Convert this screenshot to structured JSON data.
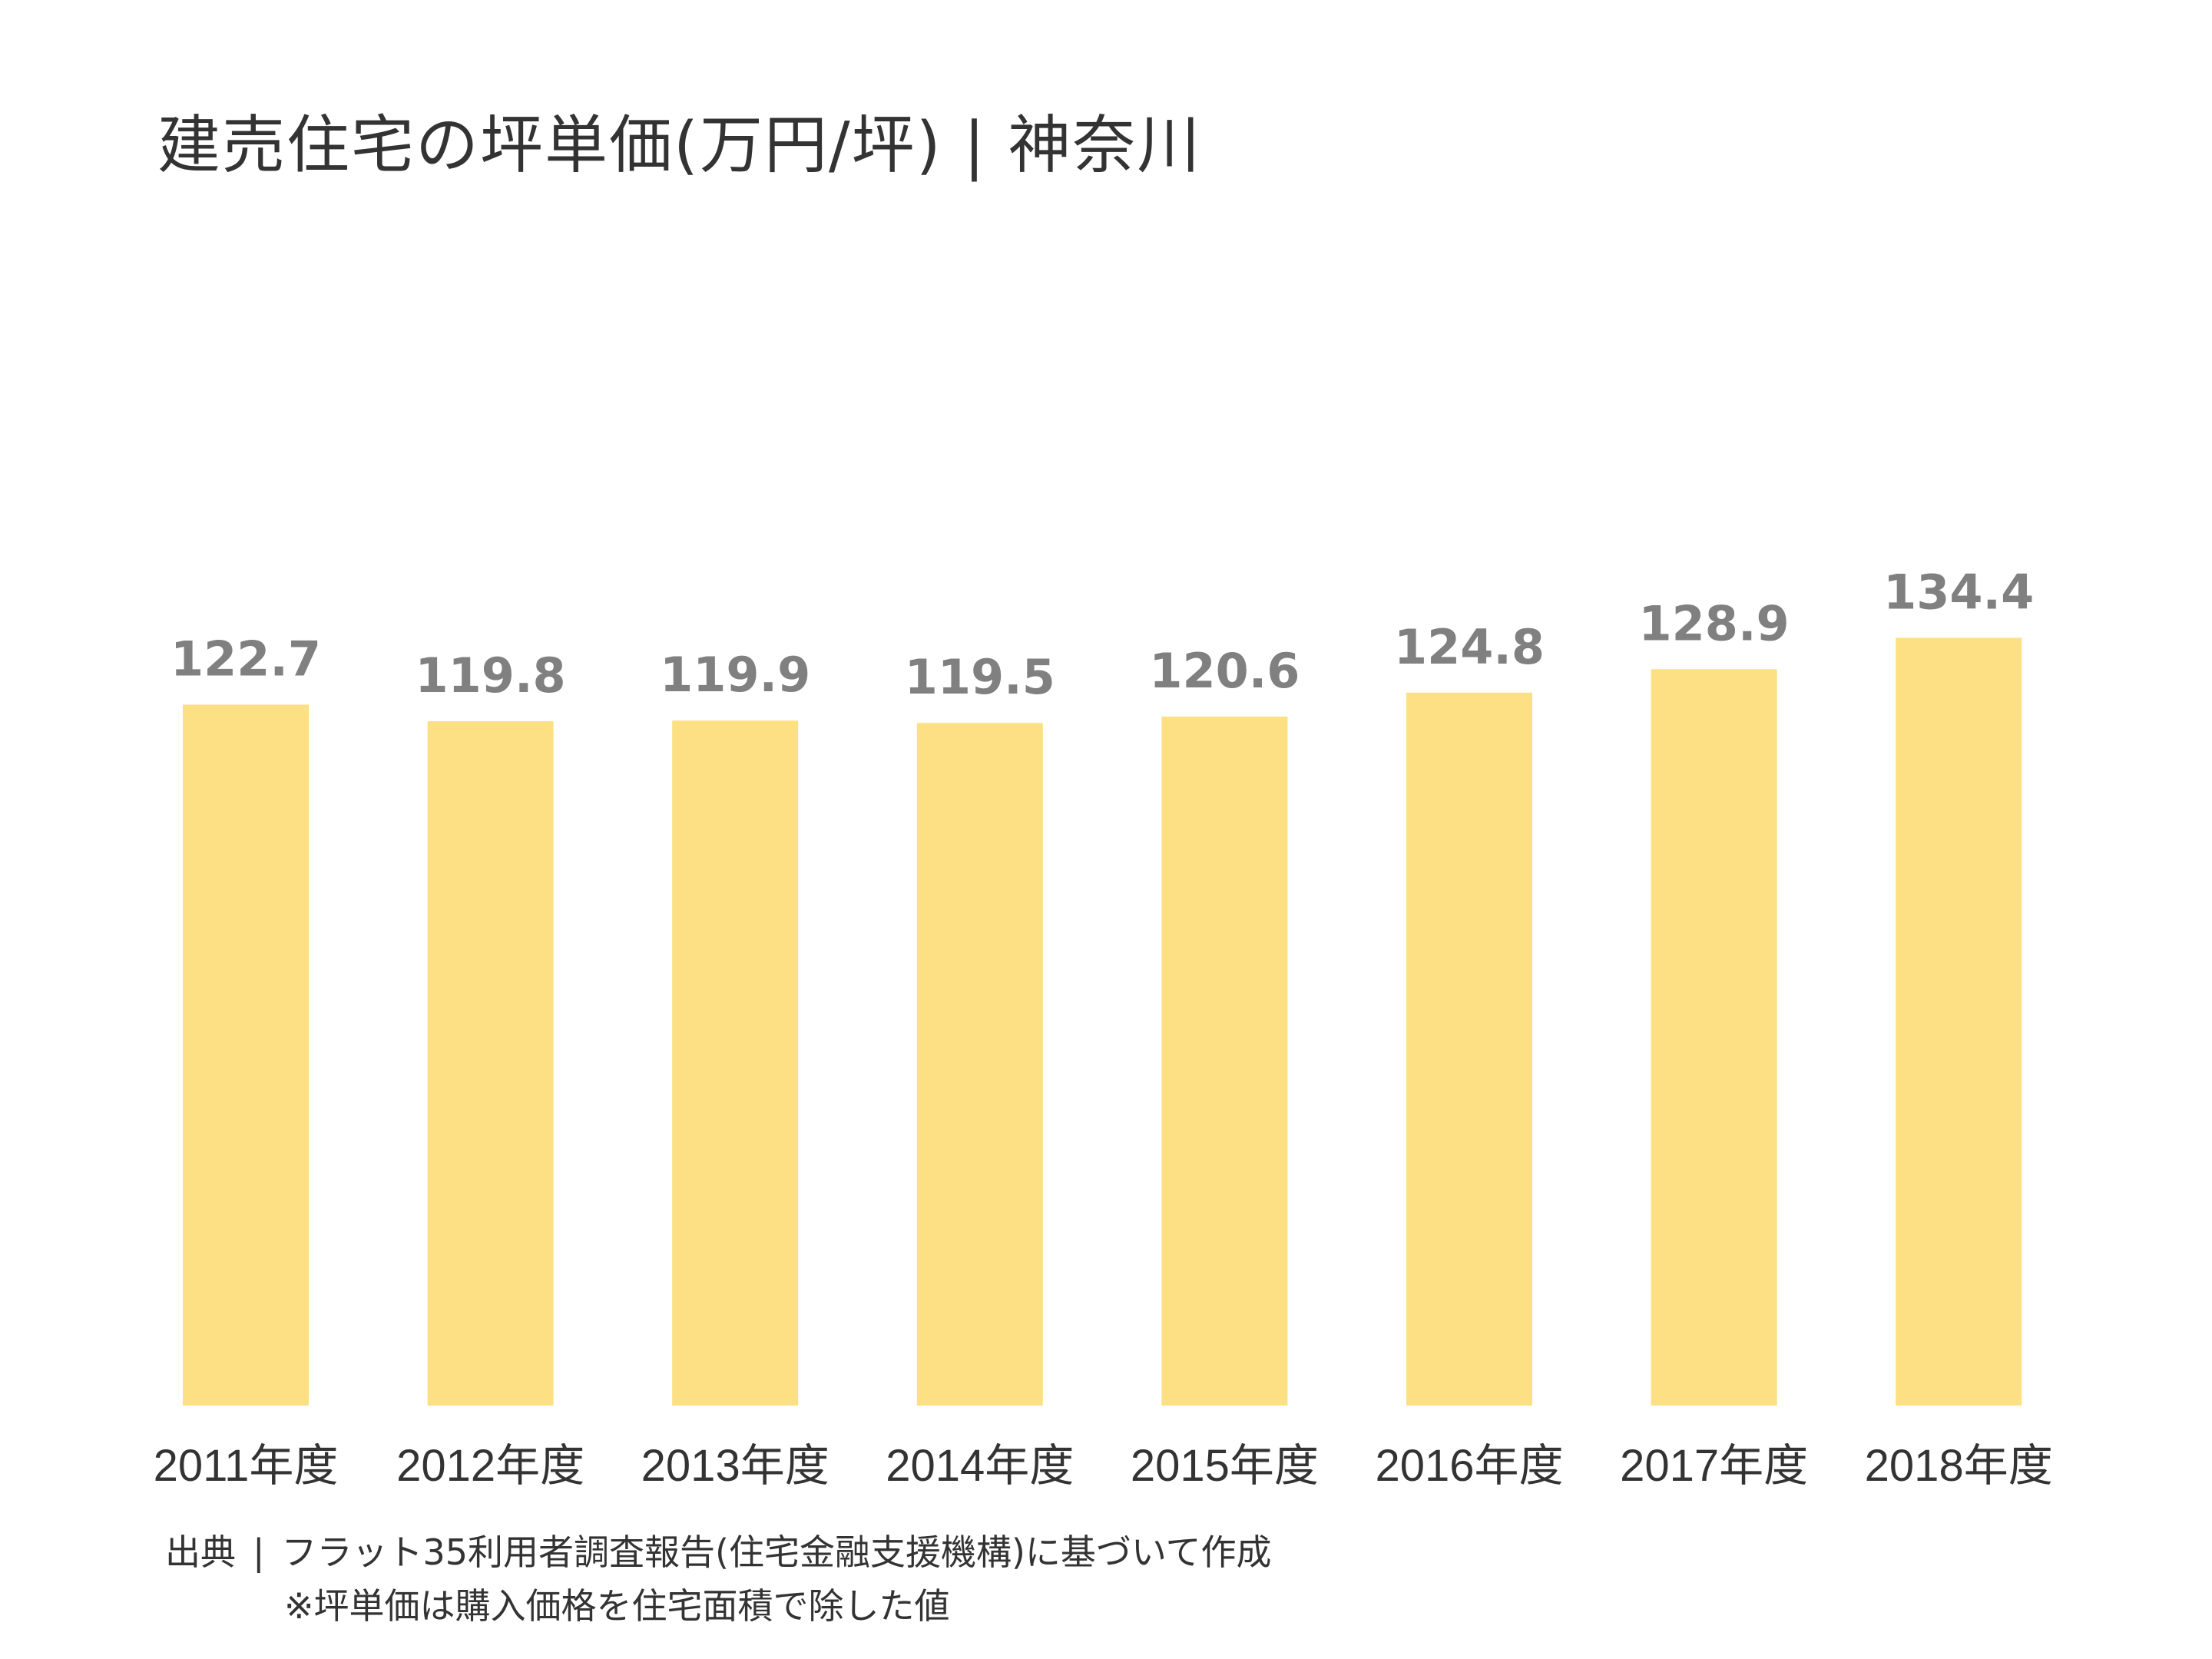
{
  "title": "建売住宅の坪単価(万円/坪) | 神奈川",
  "chart_data": {
    "type": "bar",
    "title": "建売住宅の坪単価(万円/坪) | 神奈川",
    "categories": [
      "2011年度",
      "2012年度",
      "2013年度",
      "2014年度",
      "2015年度",
      "2016年度",
      "2017年度",
      "2018年度"
    ],
    "values": [
      122.7,
      119.8,
      119.9,
      119.5,
      120.6,
      124.8,
      128.9,
      134.4
    ],
    "value_labels": [
      "122.7",
      "119.8",
      "119.9",
      "119.5",
      "120.6",
      "124.8",
      "128.9",
      "134.4"
    ],
    "xlabel": "",
    "ylabel": "",
    "ylim": [
      0,
      160
    ],
    "grid": false,
    "legend": "none"
  },
  "colors": {
    "bar": "#FDDF84",
    "value_label": "#808080",
    "text": "#333333"
  },
  "source": {
    "label": "出典",
    "separator": "|",
    "text": "フラット35利用者調査報告(住宅金融支援機構)に基づいて作成"
  },
  "note": "※坪単価は購入価格を住宅面積で除した値"
}
